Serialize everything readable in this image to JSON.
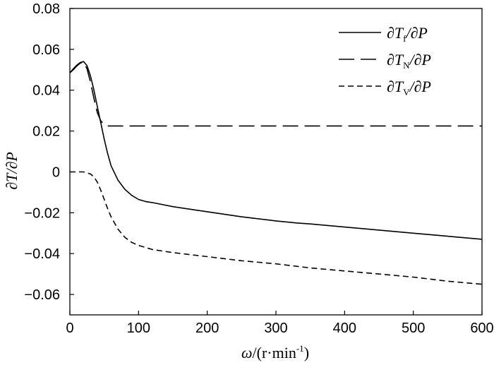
{
  "chart_data": {
    "type": "line",
    "xlabel": "ω/(r·min⁻¹)",
    "xlabel_parts": {
      "symbol": "ω",
      "unit_main": "/(r·min",
      "unit_sup": "-1",
      "unit_close": ")"
    },
    "ylabel": "∂T/∂P",
    "xlim": [
      0,
      600
    ],
    "ylim": [
      -0.07,
      0.08
    ],
    "xticks": [
      0,
      100,
      200,
      300,
      400,
      500,
      600
    ],
    "xtick_labels": [
      "0",
      "100",
      "200",
      "300",
      "400",
      "500",
      "600"
    ],
    "yticks": [
      0.08,
      0.06,
      0.04,
      0.02,
      0,
      -0.02,
      -0.04,
      -0.06
    ],
    "ytick_labels": [
      "0.08",
      "0.06",
      "0.04",
      "0.02",
      "0",
      "−0.02",
      "−0.04",
      "−0.06"
    ],
    "grid": false,
    "legend_position": "top-right",
    "series": [
      {
        "name": "∂Tf/∂P",
        "label_parts": {
          "pre": "∂T",
          "sub": "f",
          "post": "/∂P"
        },
        "style": "solid",
        "color": "#000000",
        "x": [
          0,
          5,
          10,
          15,
          20,
          25,
          30,
          35,
          40,
          45,
          50,
          55,
          60,
          70,
          80,
          90,
          100,
          110,
          120,
          150,
          200,
          250,
          300,
          330,
          350,
          400,
          450,
          500,
          550,
          600
        ],
        "y": [
          0.0485,
          0.0505,
          0.0522,
          0.0535,
          0.054,
          0.052,
          0.047,
          0.04,
          0.032,
          0.024,
          0.016,
          0.009,
          0.003,
          -0.004,
          -0.0085,
          -0.0115,
          -0.0135,
          -0.0145,
          -0.015,
          -0.017,
          -0.0195,
          -0.022,
          -0.024,
          -0.025,
          -0.0255,
          -0.027,
          -0.0285,
          -0.03,
          -0.0315,
          -0.033
        ]
      },
      {
        "name": "∂TN/∂P",
        "label_parts": {
          "pre": "∂T",
          "sub": "N",
          "post": "/∂P"
        },
        "style": "long-dash",
        "color": "#000000",
        "x": [
          0,
          5,
          10,
          15,
          20,
          25,
          30,
          35,
          40,
          45,
          50,
          55,
          60,
          70,
          80,
          100,
          200,
          300,
          400,
          500,
          600
        ],
        "y": [
          0.0485,
          0.05,
          0.0518,
          0.0532,
          0.0535,
          0.0505,
          0.044,
          0.036,
          0.029,
          0.025,
          0.023,
          0.0225,
          0.0225,
          0.0225,
          0.0225,
          0.0225,
          0.0225,
          0.0225,
          0.0225,
          0.0225,
          0.0225
        ]
      },
      {
        "name": "∂Tv/∂P",
        "label_parts": {
          "pre": "∂T",
          "sub": "V",
          "post": "/∂P"
        },
        "style": "short-dash",
        "color": "#000000",
        "x": [
          0,
          10,
          20,
          25,
          30,
          35,
          40,
          45,
          50,
          55,
          60,
          70,
          80,
          90,
          100,
          120,
          150,
          200,
          250,
          300,
          350,
          400,
          450,
          500,
          550,
          600
        ],
        "y": [
          0.0,
          0.0,
          0.0,
          -0.0005,
          -0.001,
          -0.0025,
          -0.005,
          -0.009,
          -0.0135,
          -0.018,
          -0.022,
          -0.028,
          -0.032,
          -0.0345,
          -0.036,
          -0.038,
          -0.0395,
          -0.0415,
          -0.0435,
          -0.045,
          -0.047,
          -0.0485,
          -0.05,
          -0.0515,
          -0.0535,
          -0.055
        ]
      }
    ]
  }
}
